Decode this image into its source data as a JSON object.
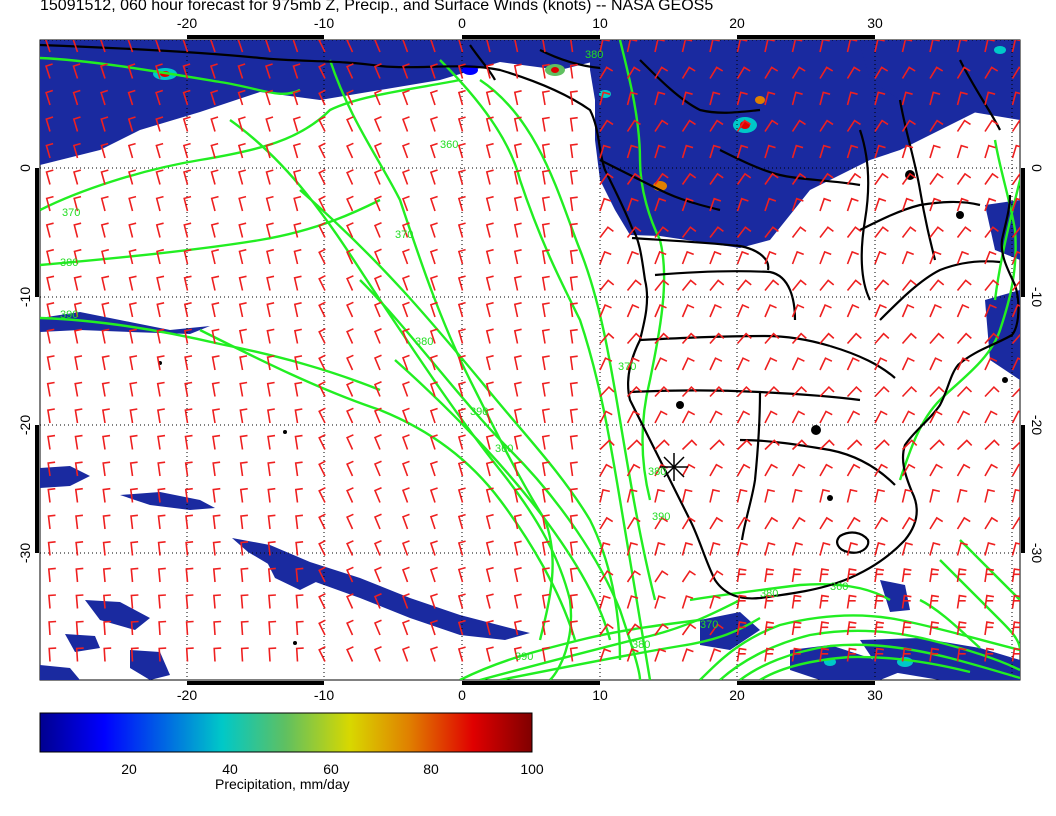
{
  "title": "15091512, 060 hour forecast for 975mb Z, Precip., and Surface Winds (knots) -- NASA GEOS5",
  "map": {
    "lon_ticks_top": [
      "-20",
      "-10",
      "0",
      "10",
      "20",
      "30"
    ],
    "lon_ticks_bottom": [
      "-20",
      "-10",
      "0",
      "10",
      "20",
      "30"
    ],
    "lat_ticks_left": [
      "0",
      "-10",
      "-20",
      "-30"
    ],
    "lat_ticks_right": [
      "0",
      "-10",
      "-20",
      "-30"
    ],
    "contour_labels": [
      "380",
      "360",
      "370",
      "380",
      "390",
      "370",
      "380",
      "390",
      "360",
      "370",
      "380",
      "390",
      "380",
      "370",
      "380",
      "390",
      "360"
    ],
    "colors": {
      "contours": "#22ee22",
      "wind_barbs": "#ee2020",
      "coast": "#000000",
      "precip_low": "#1a2aa0"
    }
  },
  "colorbar": {
    "ticks": [
      "20",
      "40",
      "60",
      "80",
      "100"
    ],
    "label": "Precipitation, mm/day"
  }
}
